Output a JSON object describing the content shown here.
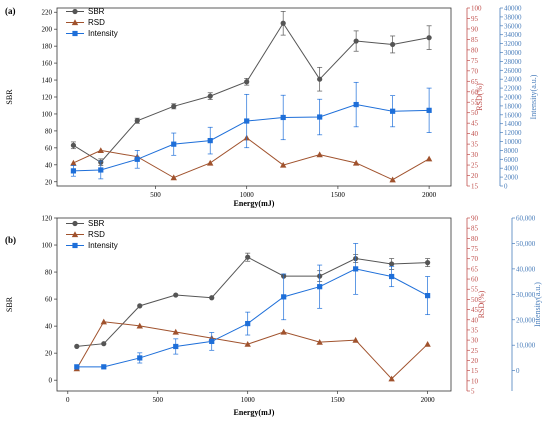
{
  "chart_data": [
    {
      "panel": "(a)",
      "type": "line",
      "xlabel": "Energy(mJ)",
      "x": [
        50,
        200,
        400,
        600,
        800,
        1000,
        1200,
        1400,
        1600,
        1800,
        2000
      ],
      "x_ticks": [
        "500",
        "1000",
        "1500",
        "2000"
      ],
      "axes": {
        "left": {
          "label": "SBR",
          "ylim": [
            15,
            225
          ],
          "ticks": [
            "20",
            "40",
            "60",
            "80",
            "100",
            "120",
            "140",
            "160",
            "180",
            "200",
            "220"
          ],
          "color": "#333333"
        },
        "right1": {
          "label": "RSD(%)",
          "ylim": [
            15,
            100
          ],
          "ticks": [
            "15",
            "20",
            "25",
            "30",
            "35",
            "40",
            "45",
            "50",
            "55",
            "60",
            "65",
            "70",
            "75",
            "80",
            "85",
            "90",
            "95",
            "100"
          ],
          "color": "#c0504d"
        },
        "right2": {
          "label": "Intensity(a.u.)",
          "ylim": [
            0,
            40000
          ],
          "ticks": [
            "0",
            "2000",
            "4000",
            "6000",
            "8000",
            "10000",
            "12000",
            "14000",
            "16000",
            "18000",
            "20000",
            "22000",
            "24000",
            "26000",
            "28000",
            "30000",
            "32000",
            "34000",
            "36000",
            "38000",
            "40000"
          ],
          "color": "#4a7ebb"
        }
      },
      "legend": "top-left",
      "series": [
        {
          "name": "SBR",
          "axis": "left",
          "marker": "circle",
          "color": "#555555",
          "values": [
            63,
            43,
            92,
            109,
            121,
            138,
            207,
            141,
            186,
            182,
            190
          ],
          "errors": [
            4,
            4,
            3,
            3,
            4,
            4,
            14,
            14,
            12,
            10,
            14
          ]
        },
        {
          "name": "RSD",
          "axis": "right1",
          "marker": "triangle",
          "color": "#a0522d",
          "values": [
            26,
            32,
            29,
            19,
            26,
            38,
            25,
            30,
            26,
            18,
            28
          ],
          "errors": []
        },
        {
          "name": "Intensity",
          "axis": "right2",
          "marker": "square",
          "color": "#1e6fd9",
          "values": [
            3400,
            3600,
            6000,
            9400,
            10200,
            14600,
            15400,
            15500,
            18300,
            16800,
            17000
          ],
          "errors": [
            1200,
            2000,
            2000,
            2500,
            3000,
            6000,
            5000,
            4000,
            5000,
            3500,
            5000
          ]
        }
      ]
    },
    {
      "panel": "(b)",
      "type": "line",
      "xlabel": "Energy(mJ)",
      "x": [
        50,
        200,
        400,
        600,
        800,
        1000,
        1200,
        1400,
        1600,
        1800,
        2000
      ],
      "x_ticks": [
        "0",
        "500",
        "1000",
        "1500",
        "2000"
      ],
      "axes": {
        "left": {
          "label": "SBR",
          "ylim": [
            -8,
            120
          ],
          "ticks": [
            "0",
            "20",
            "40",
            "60",
            "80",
            "100",
            "120"
          ],
          "color": "#333333"
        },
        "right1": {
          "label": "RSD(%)",
          "ylim": [
            5,
            90
          ],
          "ticks": [
            "5",
            "10",
            "15",
            "20",
            "25",
            "30",
            "35",
            "40",
            "45",
            "50",
            "55",
            "60",
            "65",
            "70",
            "75",
            "80",
            "85",
            "90"
          ],
          "color": "#c0504d"
        },
        "right2": {
          "label": "Intensity(a.u.)",
          "ylim": [
            -8000,
            60000
          ],
          "ticks": [
            "0",
            "10,000",
            "20,000",
            "30,000",
            "40,000",
            "50,000",
            "60,000"
          ],
          "color": "#4a7ebb"
        }
      },
      "legend": "top-left",
      "series": [
        {
          "name": "SBR",
          "axis": "left",
          "marker": "circle",
          "color": "#555555",
          "values": [
            25,
            27,
            55,
            63,
            61,
            91,
            77,
            77,
            90,
            86,
            87
          ],
          "errors": [
            0,
            0,
            0,
            0,
            0,
            3,
            0,
            4,
            3,
            4,
            3
          ]
        },
        {
          "name": "RSD",
          "axis": "right1",
          "marker": "triangle",
          "color": "#a0522d",
          "values": [
            16,
            39,
            37,
            34,
            31,
            28,
            34,
            29,
            30,
            11,
            28
          ],
          "errors": []
        },
        {
          "name": "Intensity",
          "axis": "right2",
          "marker": "square",
          "color": "#1e6fd9",
          "values": [
            1500,
            1500,
            5000,
            9500,
            11500,
            18500,
            29000,
            33000,
            40000,
            37000,
            29500
          ],
          "errors": [
            0,
            0,
            2000,
            3000,
            3500,
            4500,
            9000,
            8500,
            10000,
            4000,
            7500
          ]
        }
      ]
    }
  ]
}
